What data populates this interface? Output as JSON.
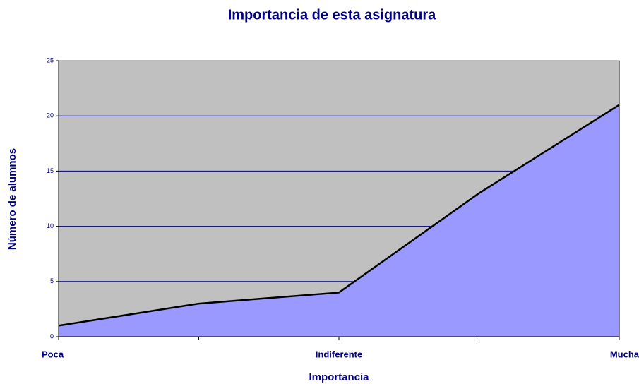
{
  "chart_data": {
    "type": "area",
    "title": "Importancia de esta asignatura",
    "x_label": "Importancia",
    "y_label": "Número de alumnos",
    "categories": [
      "Poca",
      null,
      "Indiferente",
      null,
      "Mucha"
    ],
    "series": [
      {
        "name": "Número de alumnos",
        "color": "#9999ff",
        "values": [
          1,
          3,
          4,
          13,
          21
        ]
      }
    ],
    "ylim": [
      0,
      25
    ],
    "yticks": [
      0,
      5,
      10,
      15,
      20,
      25
    ],
    "grid": true,
    "legend": false
  }
}
